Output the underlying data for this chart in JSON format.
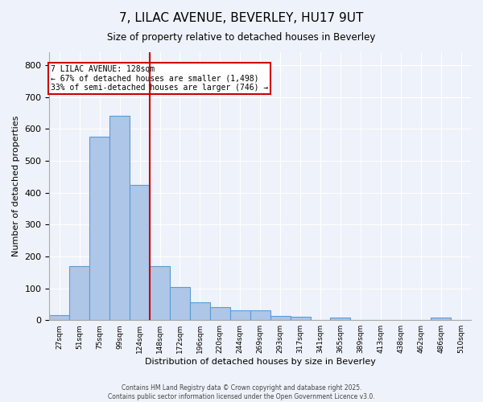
{
  "title_line1": "7, LILAC AVENUE, BEVERLEY, HU17 9UT",
  "title_line2": "Size of property relative to detached houses in Beverley",
  "xlabel": "Distribution of detached houses by size in Beverley",
  "ylabel": "Number of detached properties",
  "bin_labels": [
    "27sqm",
    "51sqm",
    "75sqm",
    "99sqm",
    "124sqm",
    "148sqm",
    "172sqm",
    "196sqm",
    "220sqm",
    "244sqm",
    "269sqm",
    "293sqm",
    "317sqm",
    "341sqm",
    "365sqm",
    "389sqm",
    "413sqm",
    "438sqm",
    "462sqm",
    "486sqm",
    "510sqm"
  ],
  "bar_heights": [
    15,
    170,
    575,
    640,
    425,
    170,
    105,
    57,
    40,
    30,
    30,
    13,
    10,
    0,
    8,
    0,
    0,
    0,
    0,
    7,
    0
  ],
  "bar_color": "#aec6e8",
  "bar_edgecolor": "#5b9bd5",
  "vline_position": 4,
  "vline_color": "#cc0000",
  "annotation_text": "7 LILAC AVENUE: 128sqm\n← 67% of detached houses are smaller (1,498)\n33% of semi-detached houses are larger (746) →",
  "annotation_box_edgecolor": "#cc0000",
  "annotation_box_facecolor": "white",
  "ylim": [
    0,
    840
  ],
  "yticks": [
    0,
    100,
    200,
    300,
    400,
    500,
    600,
    700,
    800
  ],
  "background_color": "#eef2fa",
  "grid_color": "white",
  "footer_line1": "Contains HM Land Registry data © Crown copyright and database right 2025.",
  "footer_line2": "Contains public sector information licensed under the Open Government Licence v3.0."
}
